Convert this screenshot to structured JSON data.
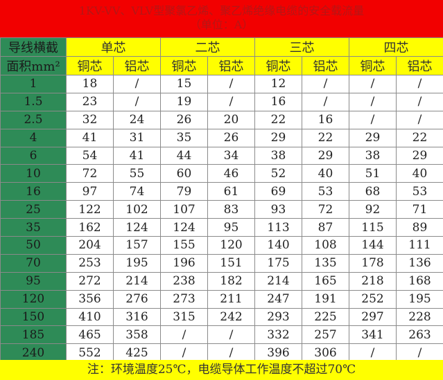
{
  "title": {
    "line1": "1KV-VV、VLV型聚氯乙烯、聚乙烯绝缘电缆的安全载流量",
    "line2": "（单位：A）"
  },
  "header": {
    "row_label_1": "导线横截",
    "row_label_2": "面积mm²",
    "groups": [
      "单芯",
      "二芯",
      "三芯",
      "四芯"
    ],
    "subcols": [
      "铜芯",
      "铝芯",
      "铜芯",
      "铝芯",
      "铜芯",
      "铝芯",
      "铜芯",
      "铝芯"
    ]
  },
  "rows": [
    [
      "1",
      "18",
      "/",
      "15",
      "/",
      "12",
      "/",
      "/",
      "/"
    ],
    [
      "1.5",
      "23",
      "/",
      "19",
      "/",
      "16",
      "/",
      "/",
      "/"
    ],
    [
      "2.5",
      "32",
      "24",
      "26",
      "20",
      "22",
      "16",
      "/",
      "/"
    ],
    [
      "4",
      "41",
      "31",
      "35",
      "26",
      "29",
      "22",
      "29",
      "22"
    ],
    [
      "6",
      "54",
      "41",
      "44",
      "34",
      "38",
      "29",
      "38",
      "29"
    ],
    [
      "10",
      "72",
      "55",
      "60",
      "46",
      "52",
      "40",
      "51",
      "40"
    ],
    [
      "16",
      "97",
      "74",
      "79",
      "61",
      "69",
      "53",
      "68",
      "53"
    ],
    [
      "25",
      "122",
      "102",
      "107",
      "83",
      "93",
      "72",
      "92",
      "71"
    ],
    [
      "35",
      "162",
      "124",
      "124",
      "95",
      "113",
      "87",
      "115",
      "89"
    ],
    [
      "50",
      "204",
      "157",
      "155",
      "120",
      "140",
      "108",
      "144",
      "111"
    ],
    [
      "70",
      "253",
      "195",
      "196",
      "151",
      "175",
      "135",
      "178",
      "136"
    ],
    [
      "95",
      "272",
      "214",
      "238",
      "182",
      "214",
      "165",
      "218",
      "168"
    ],
    [
      "120",
      "356",
      "276",
      "273",
      "211",
      "247",
      "191",
      "252",
      "195"
    ],
    [
      "150",
      "410",
      "316",
      "315",
      "242",
      "293",
      "225",
      "297",
      "228"
    ],
    [
      "185",
      "465",
      "358",
      "/",
      "/",
      "332",
      "257",
      "341",
      "263"
    ],
    [
      "240",
      "552",
      "425",
      "/",
      "/",
      "396",
      "306",
      "/",
      "/"
    ]
  ],
  "footer": "注：环境温度25℃，电缆导体工作温度不超过70℃",
  "colors": {
    "title_bg": "#f20000",
    "header_bg": "#ffff00",
    "left_col_bg": "#2e8b57"
  }
}
